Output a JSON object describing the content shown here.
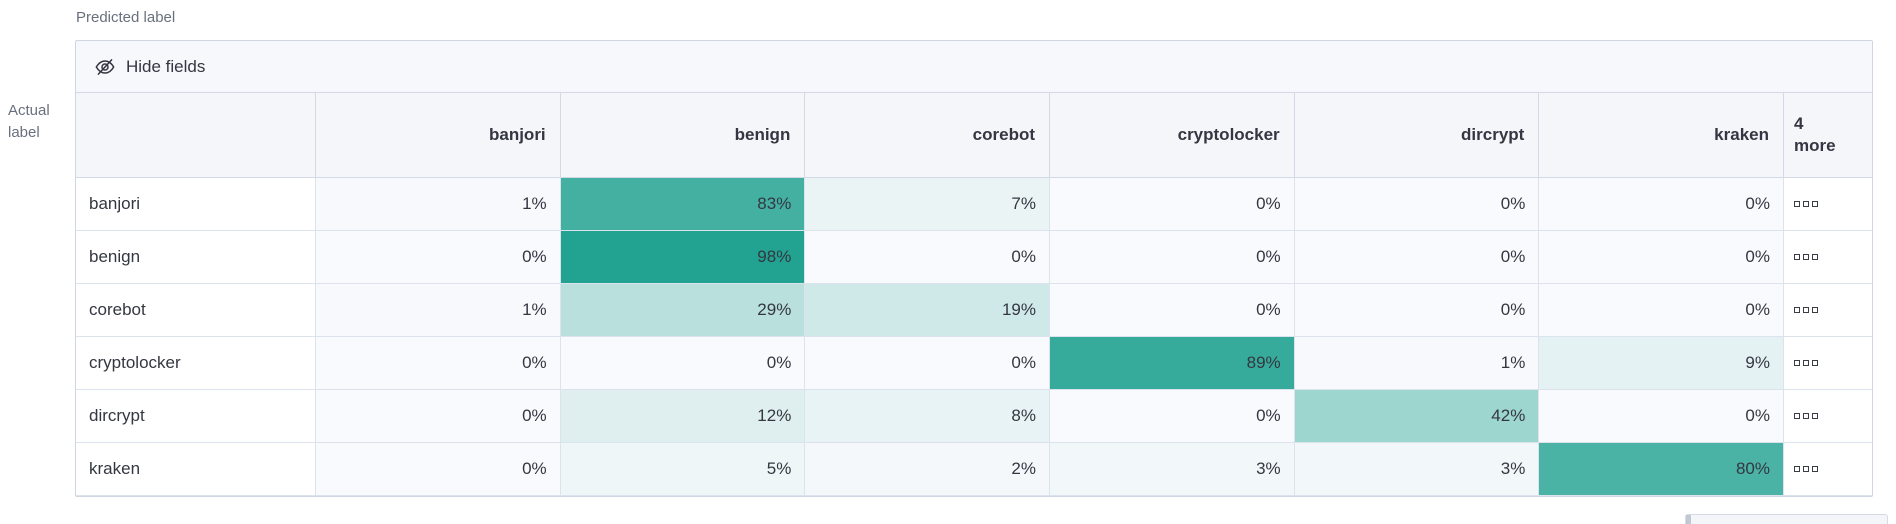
{
  "labels": {
    "predicted": "Predicted label",
    "actual_line1": "Actual",
    "actual_line2": "label"
  },
  "toolbar": {
    "hide_fields": "Hide fields"
  },
  "icons": {
    "toolbar_icon": "eye-closed-icon",
    "more_cell_icon": "boxes-horizontal-icon"
  },
  "colors": {
    "heatmap_zero": "#f9fafd",
    "heatmap_max": "#1ea18f",
    "header_bg": "#f4f6fa",
    "toolbar_bg": "#f7f8fc",
    "border": "#d3dae6",
    "text": "#343741",
    "muted_text": "#69707d"
  },
  "chart_data": {
    "type": "heatmap",
    "xlabel": "Predicted label",
    "ylabel": "Actual label",
    "columns": [
      "banjori",
      "benign",
      "corebot",
      "cryptolocker",
      "dircrypt",
      "kraken"
    ],
    "more_header": {
      "line1": "4",
      "line2": "more"
    },
    "value_suffix": "%",
    "rows": [
      {
        "label": "banjori",
        "values": [
          1,
          83,
          7,
          0,
          0,
          0
        ]
      },
      {
        "label": "benign",
        "values": [
          0,
          98,
          0,
          0,
          0,
          0
        ]
      },
      {
        "label": "corebot",
        "values": [
          1,
          29,
          19,
          0,
          0,
          0
        ]
      },
      {
        "label": "cryptolocker",
        "values": [
          0,
          0,
          0,
          89,
          1,
          9
        ]
      },
      {
        "label": "dircrypt",
        "values": [
          0,
          12,
          8,
          0,
          42,
          0
        ]
      },
      {
        "label": "kraken",
        "values": [
          0,
          5,
          2,
          3,
          3,
          80
        ]
      }
    ],
    "color_scale": {
      "zero": "#f9fafd",
      "max": "#1ea18f"
    },
    "legend": "none",
    "grid": true
  }
}
